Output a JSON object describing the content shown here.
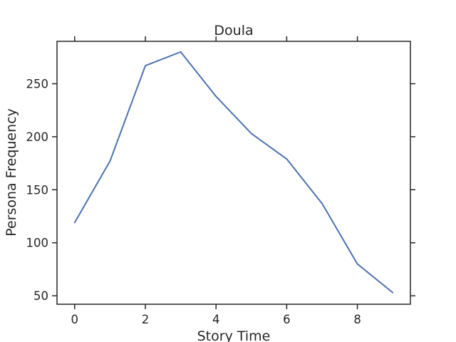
{
  "chart_data": {
    "type": "line",
    "title": "Doula",
    "xlabel": "Story Time",
    "ylabel": "Persona Frequency",
    "xlim": [
      -0.5,
      9.5
    ],
    "ylim": [
      42,
      290
    ],
    "xticks": [
      0,
      2,
      4,
      6,
      8
    ],
    "yticks": [
      50,
      100,
      150,
      200,
      250
    ],
    "grid": false,
    "series": [
      {
        "color": "#4c72b0",
        "x": [
          0,
          1,
          2,
          3,
          4,
          5,
          6,
          7,
          8,
          9
        ],
        "y": [
          119,
          177,
          267,
          280,
          238,
          203,
          179,
          137,
          80,
          53
        ]
      }
    ]
  }
}
